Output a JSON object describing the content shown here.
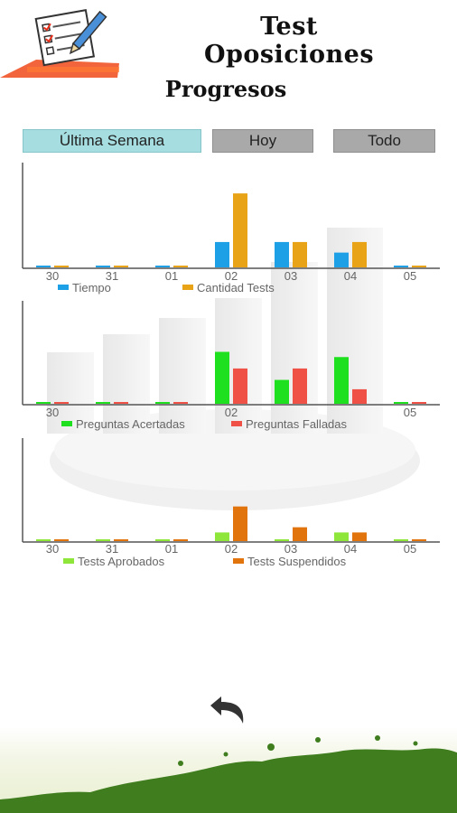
{
  "header": {
    "app_title": "Test Oposiciones",
    "page_title": "Progresos"
  },
  "tabs": [
    {
      "label": "Última Semana",
      "active": true
    },
    {
      "label": "Hoy",
      "active": false
    },
    {
      "label": "Todo",
      "active": false
    }
  ],
  "icons": {
    "logo": "checklist-pencil-icon",
    "back": "back-arrow-icon"
  },
  "colors": {
    "tab_active": "#a6dde0",
    "tab_inactive": "#a9a9a9",
    "tiempo": "#1ea0e6",
    "cantidad_tests": "#e8a317",
    "acertadas": "#1fe01f",
    "falladas": "#ef5147",
    "aprobados": "#8ee63a",
    "suspendidos": "#e2740e",
    "grass": "#3f7d1e"
  },
  "chart_data": [
    {
      "type": "bar",
      "categories": [
        "30",
        "31",
        "01",
        "02",
        "03",
        "04",
        "05"
      ],
      "series": [
        {
          "name": "Tiempo",
          "values": [
            0,
            0,
            0,
            1.2,
            1.2,
            0.7,
            0
          ]
        },
        {
          "name": "Cantidad Tests",
          "values": [
            0,
            0,
            0,
            3.5,
            1.2,
            1.2,
            0
          ]
        }
      ],
      "ylim": [
        0,
        5
      ],
      "legend": "bottom",
      "grid": false
    },
    {
      "type": "bar",
      "categories": [
        "30",
        "31",
        "01",
        "02",
        "03",
        "04",
        "05"
      ],
      "x_tick_labels": [
        "30",
        "",
        "",
        "02",
        "",
        "",
        "05"
      ],
      "series": [
        {
          "name": "Preguntas Acertadas",
          "values": [
            0,
            0,
            0,
            5,
            2.3,
            4.5,
            0
          ]
        },
        {
          "name": "Preguntas Falladas",
          "values": [
            0,
            0,
            0,
            3.4,
            3.4,
            1.4,
            0
          ]
        }
      ],
      "ylim": [
        0,
        10
      ],
      "legend": "bottom",
      "grid": false
    },
    {
      "type": "bar",
      "categories": [
        "30",
        "31",
        "01",
        "02",
        "03",
        "04",
        "05"
      ],
      "series": [
        {
          "name": "Tests Aprobados",
          "values": [
            0,
            0,
            0,
            0.25,
            0,
            0.25,
            0
          ]
        },
        {
          "name": "Tests Suspendidos",
          "values": [
            0,
            0,
            0,
            1,
            0.4,
            0.25,
            0
          ]
        }
      ],
      "ylim": [
        0,
        3
      ],
      "legend": "bottom",
      "grid": false
    }
  ]
}
